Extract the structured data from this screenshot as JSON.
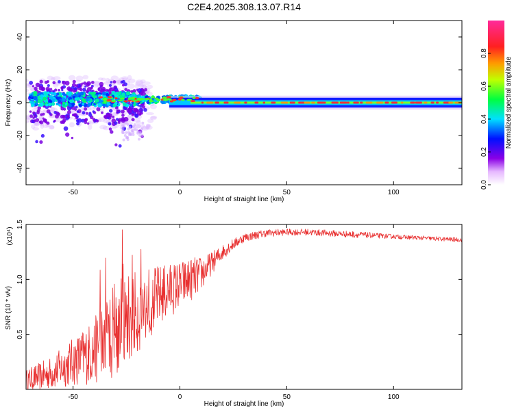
{
  "title": "C2E4.2025.308.13.07.R14",
  "chart_data": [
    {
      "type": "heatmap",
      "xlabel": "Height of straight line (km)",
      "ylabel": "Frequency (Hz)",
      "xlim": [
        -72,
        132
      ],
      "ylim": [
        -50,
        50
      ],
      "xticks": [
        -50,
        0,
        50,
        100
      ],
      "xtick_labels": [
        "-50",
        "0",
        "50",
        "100"
      ],
      "yticks": [
        -40,
        -20,
        0,
        20,
        40
      ],
      "ytick_labels": [
        "-40",
        "-20",
        "0",
        "20",
        "40"
      ],
      "colorbar": {
        "label": "Normalized spectral amplitude",
        "range": [
          0,
          1
        ],
        "ticks": [
          0.0,
          0.2,
          0.4,
          0.6,
          0.8
        ],
        "tick_labels": [
          "0.0",
          "0.2",
          "0.4",
          "0.6",
          "0.8"
        ]
      },
      "description_band": "Narrow band centered near 0 Hz; broad scatter of low amplitude between -70 and -15 km, concentrated high amplitude band from 0 to 130 km"
    },
    {
      "type": "line",
      "xlabel": "Height of straight line (km)",
      "ylabel": "SNR (10 * v/v)",
      "yscale_label": "(x10⁴)",
      "xlim": [
        -72,
        132
      ],
      "ylim": [
        0,
        1.5
      ],
      "xticks": [
        -50,
        0,
        50,
        100
      ],
      "xtick_labels": [
        "-50",
        "0",
        "50",
        "100"
      ],
      "yticks": [
        0.5,
        1.0,
        1.5
      ],
      "ytick_labels": [
        "0.5",
        "1.0",
        "1.5"
      ],
      "series": [
        {
          "name": "SNR",
          "color": "#e83030",
          "x": [
            -72,
            -60,
            -50,
            -40,
            -35,
            -30,
            -25,
            -20,
            -15,
            -10,
            -5,
            0,
            5,
            10,
            15,
            20,
            25,
            30,
            40,
            50,
            60,
            70,
            80,
            90,
            100,
            110,
            120,
            132
          ],
          "values": [
            0.08,
            0.15,
            0.25,
            0.35,
            0.45,
            0.55,
            0.62,
            0.7,
            0.78,
            0.85,
            0.9,
            0.95,
            1.0,
            1.05,
            1.15,
            1.25,
            1.32,
            1.38,
            1.42,
            1.43,
            1.43,
            1.42,
            1.41,
            1.4,
            1.39,
            1.38,
            1.37,
            1.36
          ],
          "noise_amplitude": [
            0.1,
            0.15,
            0.22,
            0.3,
            0.4,
            0.45,
            0.42,
            0.38,
            0.33,
            0.28,
            0.25,
            0.22,
            0.2,
            0.16,
            0.1,
            0.07,
            0.05,
            0.04,
            0.035,
            0.03,
            0.03,
            0.03,
            0.03,
            0.025,
            0.02,
            0.02,
            0.02,
            0.02
          ]
        }
      ]
    }
  ]
}
